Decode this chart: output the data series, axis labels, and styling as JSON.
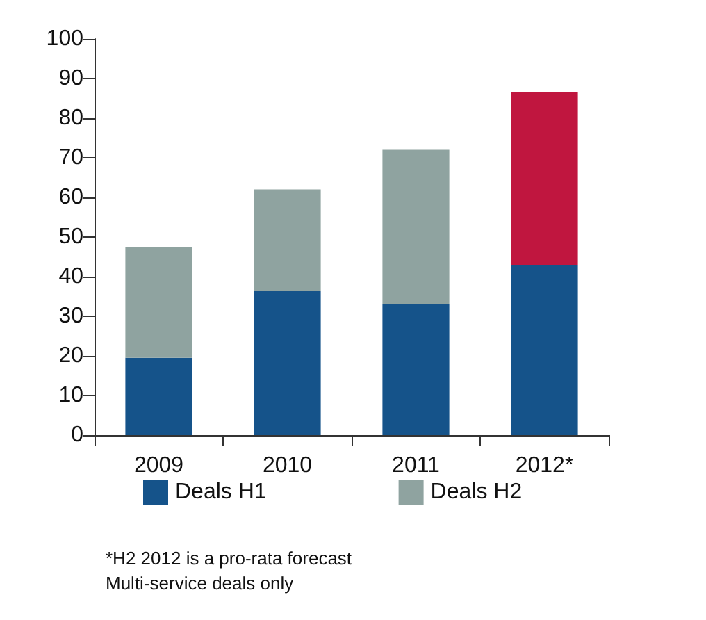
{
  "chart_data": {
    "type": "bar",
    "stacked": true,
    "categories": [
      "2009",
      "2010",
      "2011",
      "2012*"
    ],
    "series": [
      {
        "name": "Deals H1",
        "color": "#15538a",
        "values": [
          19.5,
          36.5,
          33,
          43
        ]
      },
      {
        "name": "Deals H2",
        "color": "#8fa3a0",
        "colors": [
          "#8fa3a0",
          "#8fa3a0",
          "#8fa3a0",
          "#c0163f"
        ],
        "values": [
          28,
          25.5,
          39,
          43.5
        ]
      }
    ],
    "ylim": [
      0,
      100
    ],
    "yticks": [
      0,
      10,
      20,
      30,
      40,
      50,
      60,
      70,
      80,
      90,
      100
    ],
    "grid": false,
    "legend": "bottom",
    "annotations": [
      "*H2 2012 is a pro-rata forecast",
      "Multi-service deals only"
    ]
  }
}
